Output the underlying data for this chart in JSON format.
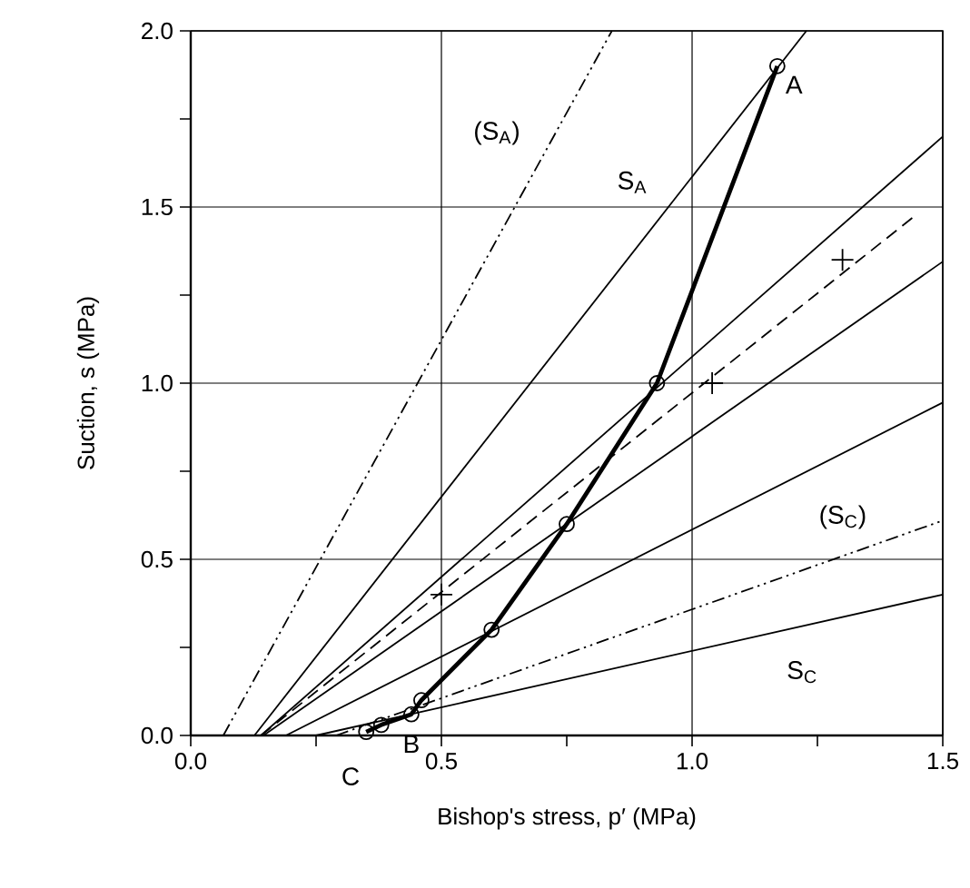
{
  "chart_data": {
    "type": "line",
    "xlabel": "Bishop's stress, p′ (MPa)",
    "ylabel": "Suction, s (MPa)",
    "xlim": [
      0,
      1.5
    ],
    "ylim": [
      0,
      2.0
    ],
    "xticks": [
      {
        "value": 0,
        "label": "0.0"
      },
      {
        "value": 0.25,
        "label": null
      },
      {
        "value": 0.5,
        "label": "0.5"
      },
      {
        "value": 0.75,
        "label": null
      },
      {
        "value": 1.0,
        "label": "1.0"
      },
      {
        "value": 1.25,
        "label": null
      },
      {
        "value": 1.5,
        "label": "1.5"
      }
    ],
    "yticks": [
      {
        "value": 0,
        "label": "0.0"
      },
      {
        "value": 0.25,
        "label": null
      },
      {
        "value": 0.5,
        "label": "0.5"
      },
      {
        "value": 0.75,
        "label": null
      },
      {
        "value": 1.0,
        "label": "1.0"
      },
      {
        "value": 1.25,
        "label": null
      },
      {
        "value": 1.5,
        "label": "1.5"
      },
      {
        "value": 1.75,
        "label": null
      },
      {
        "value": 2.0,
        "label": "2.0"
      }
    ],
    "grid": true,
    "series": [
      {
        "color": "#000000",
        "line_style": "dashdot",
        "marker": "none",
        "x": [
          0.065,
          0.84
        ],
        "values": [
          0,
          2.0
        ]
      },
      {
        "color": "#000000",
        "line_style": "solid",
        "marker": "none",
        "x": [
          0.127,
          1.228
        ],
        "values": [
          0,
          2.0
        ]
      },
      {
        "color": "#000000",
        "line_style": "solid",
        "marker": "none",
        "x": [
          0.14,
          1.5
        ],
        "values": [
          0,
          1.7
        ]
      },
      {
        "color": "#000000",
        "line_style": "dashed",
        "marker": "none",
        "x": [
          0.14,
          1.44
        ],
        "values": [
          0,
          1.47
        ]
      },
      {
        "color": "#000000",
        "line_style": "solid",
        "marker": "none",
        "x": [
          0.145,
          1.5
        ],
        "values": [
          0,
          1.345
        ]
      },
      {
        "color": "#000000",
        "line_style": "solid",
        "marker": "none",
        "x": [
          0.19,
          1.5
        ],
        "values": [
          0,
          0.945
        ]
      },
      {
        "color": "#000000",
        "line_style": "dashdot",
        "marker": "none",
        "x": [
          0.29,
          1.5
        ],
        "values": [
          0,
          0.61
        ]
      },
      {
        "color": "#000000",
        "line_style": "solid",
        "marker": "none",
        "x": [
          0.25,
          1.5
        ],
        "values": [
          0,
          0.4
        ]
      },
      {
        "color": "#000000",
        "line_style": "solid",
        "marker": "circle",
        "x": [
          0.35,
          0.38,
          0.44,
          0.46,
          0.6,
          0.75,
          0.93,
          1.17
        ],
        "values": [
          0.01,
          0.03,
          0.06,
          0.1,
          0.3,
          0.6,
          1.0,
          1.9
        ]
      },
      {
        "type": "scatter",
        "color": "#000000",
        "marker": "cross",
        "x": [
          0.5,
          1.04,
          1.3
        ],
        "values": [
          0.4,
          1.0,
          1.35
        ]
      }
    ],
    "annotations": [
      "(S$_{A}$)",
      "S$_{A}$",
      {
        "text": "A",
        "x": 1.17,
        "y": 1.9
      },
      "(S$_{C}$)",
      "S$_{C}$",
      {
        "text": "B",
        "x": 0.44,
        "y": 0.06
      },
      {
        "text": "C",
        "x": 0.35,
        "y": 0.01
      }
    ]
  }
}
